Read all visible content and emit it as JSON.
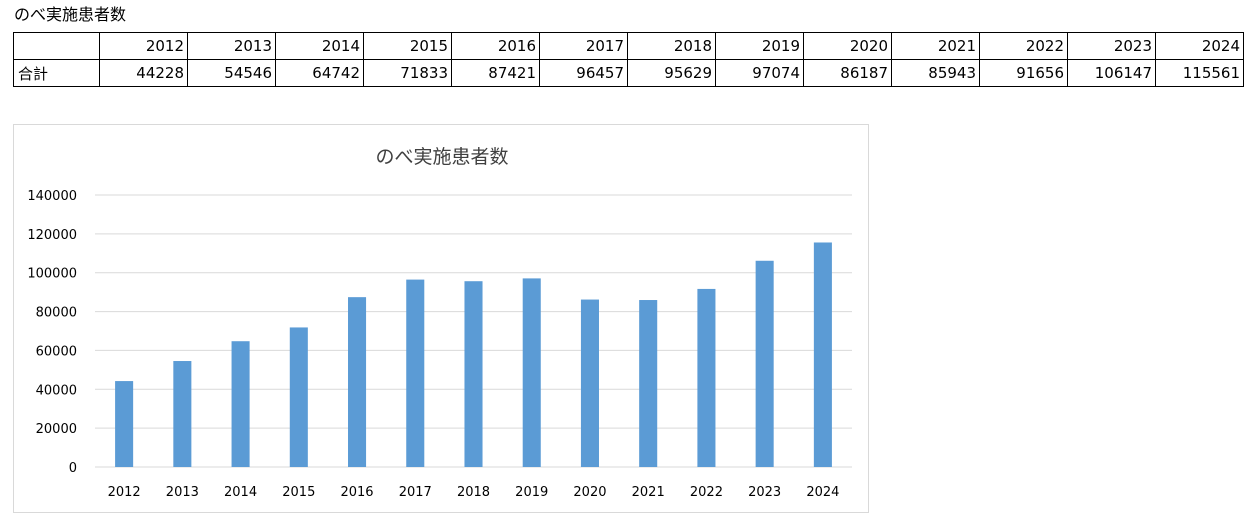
{
  "sheet_title": "のべ実施患者数",
  "table": {
    "header_label": "",
    "row_label": "合計",
    "years": [
      "2012",
      "2013",
      "2014",
      "2015",
      "2016",
      "2017",
      "2018",
      "2019",
      "2020",
      "2021",
      "2022",
      "2023",
      "2024"
    ],
    "totals": [
      "44228",
      "54546",
      "64742",
      "71833",
      "87421",
      "96457",
      "95629",
      "97074",
      "86187",
      "85943",
      "91656",
      "106147",
      "115561"
    ]
  },
  "chart_data": {
    "type": "bar",
    "title": "のべ実施患者数",
    "categories": [
      "2012",
      "2013",
      "2014",
      "2015",
      "2016",
      "2017",
      "2018",
      "2019",
      "2020",
      "2021",
      "2022",
      "2023",
      "2024"
    ],
    "values": [
      44228,
      54546,
      64742,
      71833,
      87421,
      96457,
      95629,
      97074,
      86187,
      85943,
      91656,
      106147,
      115561
    ],
    "xlabel": "",
    "ylabel": "",
    "ylim": [
      0,
      140000
    ],
    "yticks": [
      0,
      20000,
      40000,
      60000,
      80000,
      100000,
      120000,
      140000
    ],
    "grid": true,
    "legend": "none",
    "bar_color": "#5b9bd5",
    "grid_color": "#d9d9d9"
  }
}
